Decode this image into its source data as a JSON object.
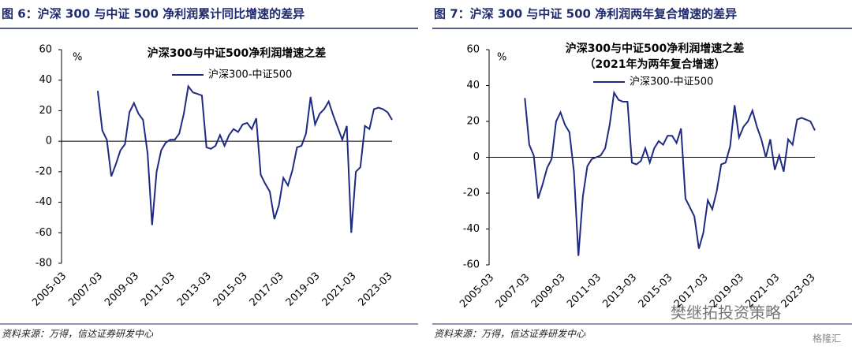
{
  "chart_data": [
    {
      "type": "line",
      "figure_title": "图 6：沪深 300 与中证 500 净利润累计同比增速的差异",
      "title": "沪深300与中证500净利润增速之差",
      "y_unit": "%",
      "source": "资料来源：万得，信达证券研发中心",
      "categories": [
        "2005-03",
        null,
        null,
        null,
        null,
        null,
        null,
        null,
        "2007-03",
        null,
        null,
        null,
        null,
        null,
        null,
        null,
        "2009-03",
        null,
        null,
        null,
        null,
        null,
        null,
        null,
        "2011-03",
        null,
        null,
        null,
        null,
        null,
        null,
        null,
        "2013-03",
        null,
        null,
        null,
        null,
        null,
        null,
        null,
        "2015-03",
        null,
        null,
        null,
        null,
        null,
        null,
        null,
        "2017-03",
        null,
        null,
        null,
        null,
        null,
        null,
        null,
        "2019-03",
        null,
        null,
        null,
        null,
        null,
        null,
        null,
        "2021-03",
        null,
        null,
        null,
        null,
        null,
        null,
        null,
        "2023-03",
        null
      ],
      "series": [
        {
          "name": "沪深300-中证500",
          "color": "#1f2a80",
          "values": [
            null,
            null,
            null,
            null,
            null,
            null,
            null,
            null,
            33,
            7,
            1,
            -23,
            -15,
            -6,
            -2,
            19,
            25,
            18,
            14,
            -8,
            -55,
            -20,
            -6,
            -1,
            1,
            1,
            5,
            18,
            36,
            32,
            31,
            30,
            -4,
            -5,
            -3,
            4,
            -3,
            4,
            8,
            6,
            11,
            12,
            8,
            15,
            -22,
            -28,
            -33,
            -51,
            -42,
            -24,
            -29,
            -19,
            -4,
            -3,
            5,
            29,
            11,
            18,
            21,
            26,
            17,
            9,
            1,
            10,
            -60,
            -20,
            -17,
            10,
            8,
            21,
            22,
            21,
            19,
            14
          ]
        }
      ],
      "ylim": [
        -80,
        60
      ],
      "yticks": [
        -80,
        -60,
        -40,
        -20,
        0,
        20,
        40,
        60
      ]
    },
    {
      "type": "line",
      "figure_title": "图 7：沪深 300 与中证 500 净利润两年复合增速的差异",
      "title": "沪深300与中证500净利润增速之差",
      "subtitle": "（2021年为两年复合增速）",
      "y_unit": "%",
      "source": "资料来源：万得，信达证券研发中心",
      "categories": [
        "2005-03",
        null,
        null,
        null,
        null,
        null,
        null,
        null,
        "2007-03",
        null,
        null,
        null,
        null,
        null,
        null,
        null,
        "2009-03",
        null,
        null,
        null,
        null,
        null,
        null,
        null,
        "2011-03",
        null,
        null,
        null,
        null,
        null,
        null,
        null,
        "2013-03",
        null,
        null,
        null,
        null,
        null,
        null,
        null,
        "2015-03",
        null,
        null,
        null,
        null,
        null,
        null,
        null,
        "2017-03",
        null,
        null,
        null,
        null,
        null,
        null,
        null,
        "2019-03",
        null,
        null,
        null,
        null,
        null,
        null,
        null,
        "2021-03",
        null,
        null,
        null,
        null,
        null,
        null,
        null,
        "2023-03",
        null
      ],
      "series": [
        {
          "name": "沪深300-中证500",
          "color": "#1f2a80",
          "values": [
            null,
            null,
            null,
            null,
            null,
            null,
            null,
            null,
            33,
            7,
            1,
            -23,
            -15,
            -6,
            -1,
            20,
            25,
            18,
            14,
            -8,
            -55,
            -22,
            -5,
            -1,
            0,
            1,
            5,
            18,
            36,
            32,
            31,
            31,
            -3,
            -4,
            -2,
            5,
            -3,
            5,
            9,
            7,
            12,
            12,
            8,
            16,
            -23,
            -28,
            -33,
            -51,
            -42,
            -24,
            -29,
            -19,
            -4,
            -3,
            6,
            29,
            11,
            17,
            20,
            26,
            17,
            10,
            0,
            10,
            -7,
            1,
            -8,
            10,
            7,
            21,
            22,
            21,
            20,
            15
          ]
        }
      ],
      "ylim": [
        -60,
        60
      ],
      "yticks": [
        -60,
        -40,
        -20,
        0,
        20,
        40,
        60
      ]
    }
  ],
  "watermark": "樊继拓投资策略",
  "logo": "格隆汇"
}
